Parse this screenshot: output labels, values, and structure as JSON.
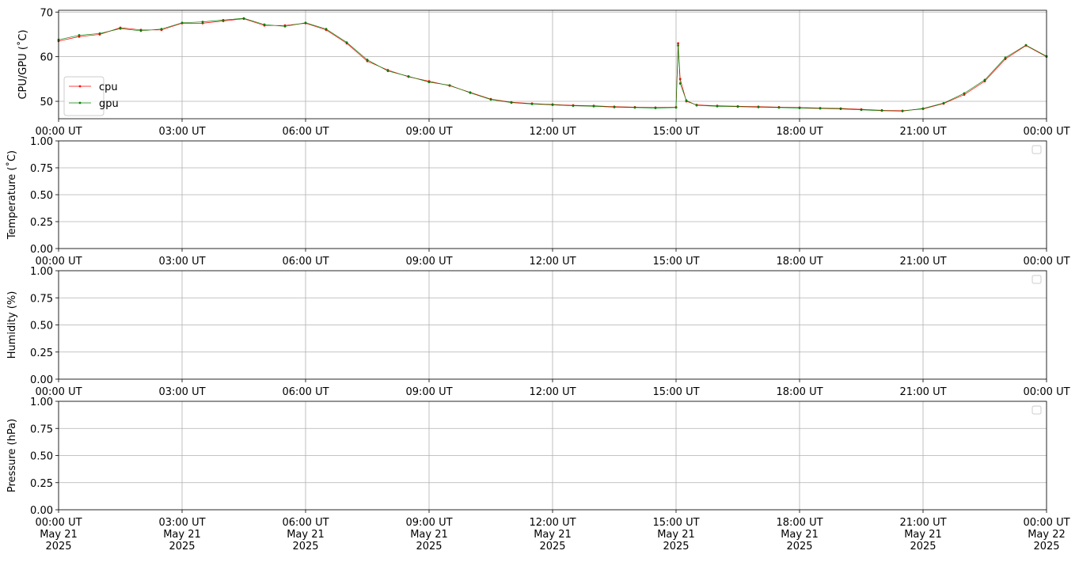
{
  "chart_data": [
    {
      "type": "line",
      "ylabel": "CPU/GPU (˚C)",
      "grid": true,
      "legend": "lower left",
      "xlim": [
        0,
        24
      ],
      "ylim": [
        46.1,
        70.4
      ],
      "yticks": [
        50,
        60,
        70
      ],
      "xticks": [
        {
          "value": 0,
          "label": "00:00 UT"
        },
        {
          "value": 3,
          "label": "03:00 UT"
        },
        {
          "value": 6,
          "label": "06:00 UT"
        },
        {
          "value": 9,
          "label": "09:00 UT"
        },
        {
          "value": 12,
          "label": "12:00 UT"
        },
        {
          "value": 15,
          "label": "15:00 UT"
        },
        {
          "value": 18,
          "label": "18:00 UT"
        },
        {
          "value": 21,
          "label": "21:00 UT"
        },
        {
          "value": 24,
          "label": "00:00 UT"
        }
      ],
      "x": [
        0,
        0.5,
        1,
        1.5,
        2,
        2.5,
        3,
        3.5,
        4,
        4.5,
        5,
        5.5,
        6,
        6.5,
        7,
        7.5,
        8,
        8.5,
        9,
        9.5,
        10,
        10.5,
        11,
        11.5,
        12,
        12.5,
        13,
        13.5,
        14,
        14.5,
        15,
        15.05,
        15.1,
        15.25,
        15.5,
        16,
        16.5,
        17,
        17.5,
        18,
        18.5,
        19,
        19.5,
        20,
        20.5,
        21,
        21.5,
        22,
        22.5,
        23,
        23.5,
        24
      ],
      "series": [
        {
          "name": "cpu",
          "color": "#ff0000",
          "values": [
            63.5,
            64.5,
            65,
            66.5,
            66,
            66,
            67.5,
            67.5,
            68,
            68.5,
            67,
            67,
            67.5,
            66,
            63,
            59,
            57,
            55.5,
            54.5,
            53.5,
            52,
            50.5,
            49.8,
            49.5,
            49.3,
            49.1,
            49,
            48.8,
            48.7,
            48.6,
            48.7,
            63,
            55,
            50,
            49.2,
            49,
            48.9,
            48.8,
            48.7,
            48.6,
            48.5,
            48.4,
            48.2,
            48,
            47.9,
            48.3,
            49.5,
            51.5,
            54.5,
            59.5,
            62.5,
            60
          ]
        },
        {
          "name": "gpu",
          "color": "#008000",
          "values": [
            63.8,
            64.8,
            65.2,
            66.3,
            65.8,
            66.2,
            67.6,
            67.8,
            68.2,
            68.6,
            67.2,
            66.8,
            67.6,
            66.2,
            63.2,
            59.3,
            56.8,
            55.6,
            54.3,
            53.6,
            51.9,
            50.4,
            49.7,
            49.4,
            49.2,
            49,
            48.9,
            48.7,
            48.6,
            48.5,
            48.6,
            62.5,
            54,
            50.2,
            49.1,
            48.9,
            48.8,
            48.7,
            48.6,
            48.5,
            48.4,
            48.3,
            48.1,
            47.9,
            47.8,
            48.4,
            49.6,
            51.8,
            54.8,
            59.8,
            62.6,
            60.1
          ]
        }
      ]
    },
    {
      "type": "line",
      "ylabel": "Temperature (˚C)",
      "grid": true,
      "legend": "upper right",
      "xlim": [
        0,
        24
      ],
      "ylim": [
        0,
        1
      ],
      "yticks": [
        {
          "value": 0,
          "label": "0.00"
        },
        {
          "value": 0.25,
          "label": "0.25"
        },
        {
          "value": 0.5,
          "label": "0.50"
        },
        {
          "value": 0.75,
          "label": "0.75"
        },
        {
          "value": 1,
          "label": "1.00"
        }
      ],
      "xticks": [
        {
          "value": 0,
          "label": "00:00 UT"
        },
        {
          "value": 3,
          "label": "03:00 UT"
        },
        {
          "value": 6,
          "label": "06:00 UT"
        },
        {
          "value": 9,
          "label": "09:00 UT"
        },
        {
          "value": 12,
          "label": "12:00 UT"
        },
        {
          "value": 15,
          "label": "15:00 UT"
        },
        {
          "value": 18,
          "label": "18:00 UT"
        },
        {
          "value": 21,
          "label": "21:00 UT"
        },
        {
          "value": 24,
          "label": "00:00 UT"
        }
      ],
      "series": []
    },
    {
      "type": "line",
      "ylabel": "Humidity (%)",
      "grid": true,
      "legend": "upper right",
      "xlim": [
        0,
        24
      ],
      "ylim": [
        0,
        1
      ],
      "yticks": [
        {
          "value": 0,
          "label": "0.00"
        },
        {
          "value": 0.25,
          "label": "0.25"
        },
        {
          "value": 0.5,
          "label": "0.50"
        },
        {
          "value": 0.75,
          "label": "0.75"
        },
        {
          "value": 1,
          "label": "1.00"
        }
      ],
      "xticks": [
        {
          "value": 0,
          "label": "00:00 UT"
        },
        {
          "value": 3,
          "label": "03:00 UT"
        },
        {
          "value": 6,
          "label": "06:00 UT"
        },
        {
          "value": 9,
          "label": "09:00 UT"
        },
        {
          "value": 12,
          "label": "12:00 UT"
        },
        {
          "value": 15,
          "label": "15:00 UT"
        },
        {
          "value": 18,
          "label": "18:00 UT"
        },
        {
          "value": 21,
          "label": "21:00 UT"
        },
        {
          "value": 24,
          "label": "00:00 UT"
        }
      ],
      "series": []
    },
    {
      "type": "line",
      "ylabel": "Pressure (hPa)",
      "grid": true,
      "legend": "upper right",
      "xlim": [
        0,
        24
      ],
      "ylim": [
        0,
        1
      ],
      "yticks": [
        {
          "value": 0,
          "label": "0.00"
        },
        {
          "value": 0.25,
          "label": "0.25"
        },
        {
          "value": 0.5,
          "label": "0.50"
        },
        {
          "value": 0.75,
          "label": "0.75"
        },
        {
          "value": 1,
          "label": "1.00"
        }
      ],
      "xticks": [
        {
          "value": 0,
          "label": "00:00 UT\nMay 21\n2025"
        },
        {
          "value": 3,
          "label": "03:00 UT\nMay 21\n2025"
        },
        {
          "value": 6,
          "label": "06:00 UT\nMay 21\n2025"
        },
        {
          "value": 9,
          "label": "09:00 UT\nMay 21\n2025"
        },
        {
          "value": 12,
          "label": "12:00 UT\nMay 21\n2025"
        },
        {
          "value": 15,
          "label": "15:00 UT\nMay 21\n2025"
        },
        {
          "value": 18,
          "label": "18:00 UT\nMay 21\n2025"
        },
        {
          "value": 21,
          "label": "21:00 UT\nMay 21\n2025"
        },
        {
          "value": 24,
          "label": "00:00 UT\nMay 22\n2025"
        }
      ],
      "series": []
    }
  ]
}
